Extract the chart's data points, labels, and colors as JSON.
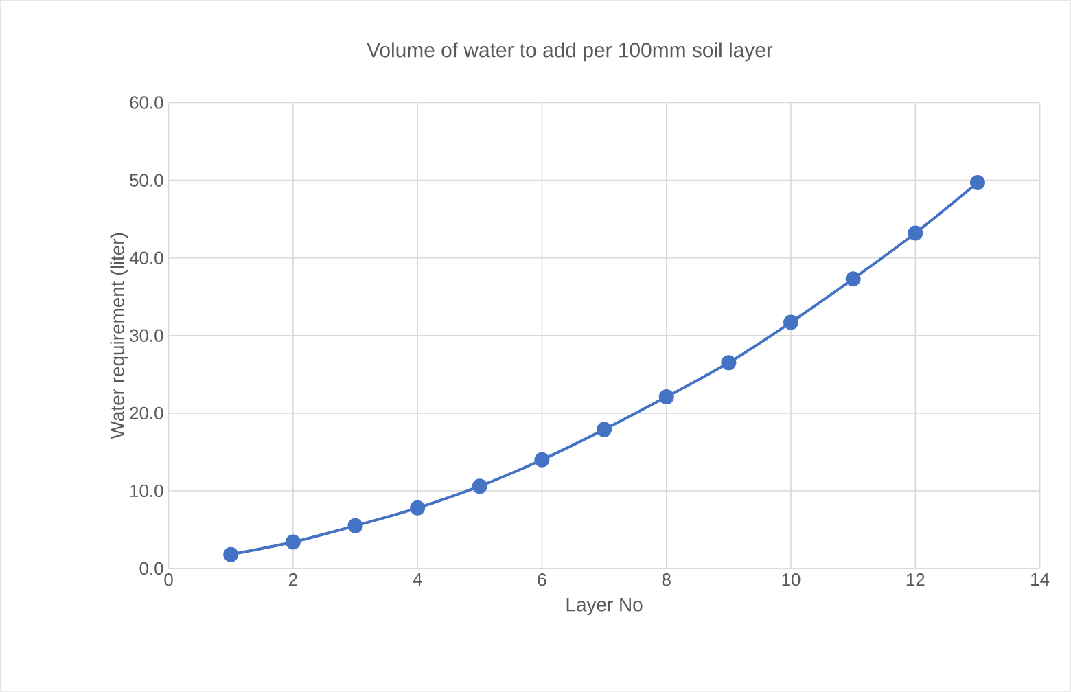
{
  "chart_data": {
    "type": "line",
    "title": "Volume of water to add per 100mm soil layer",
    "xlabel": "Layer No",
    "ylabel": "Water requirement (liter)",
    "x": [
      1,
      2,
      3,
      4,
      5,
      6,
      7,
      8,
      9,
      10,
      11,
      12,
      13
    ],
    "series": [
      {
        "color": "#4472c4",
        "values": [
          1.8,
          3.4,
          5.5,
          7.8,
          10.6,
          14.0,
          17.9,
          22.1,
          26.5,
          31.7,
          37.3,
          43.2,
          49.7
        ]
      }
    ],
    "xlim": [
      0,
      14
    ],
    "xticks": [
      0,
      2,
      4,
      6,
      8,
      10,
      12,
      14
    ],
    "ylim": [
      0,
      60
    ],
    "yticks": [
      {
        "value": 0,
        "label": "0.0"
      },
      {
        "value": 10,
        "label": "10.0"
      },
      {
        "value": 20,
        "label": "20.0"
      },
      {
        "value": 30,
        "label": "30.0"
      },
      {
        "value": 40,
        "label": "40.0"
      },
      {
        "value": 50,
        "label": "50.0"
      },
      {
        "value": 60,
        "label": "60.0"
      }
    ],
    "grid": true,
    "marker": "circle",
    "line_style": "solid"
  }
}
